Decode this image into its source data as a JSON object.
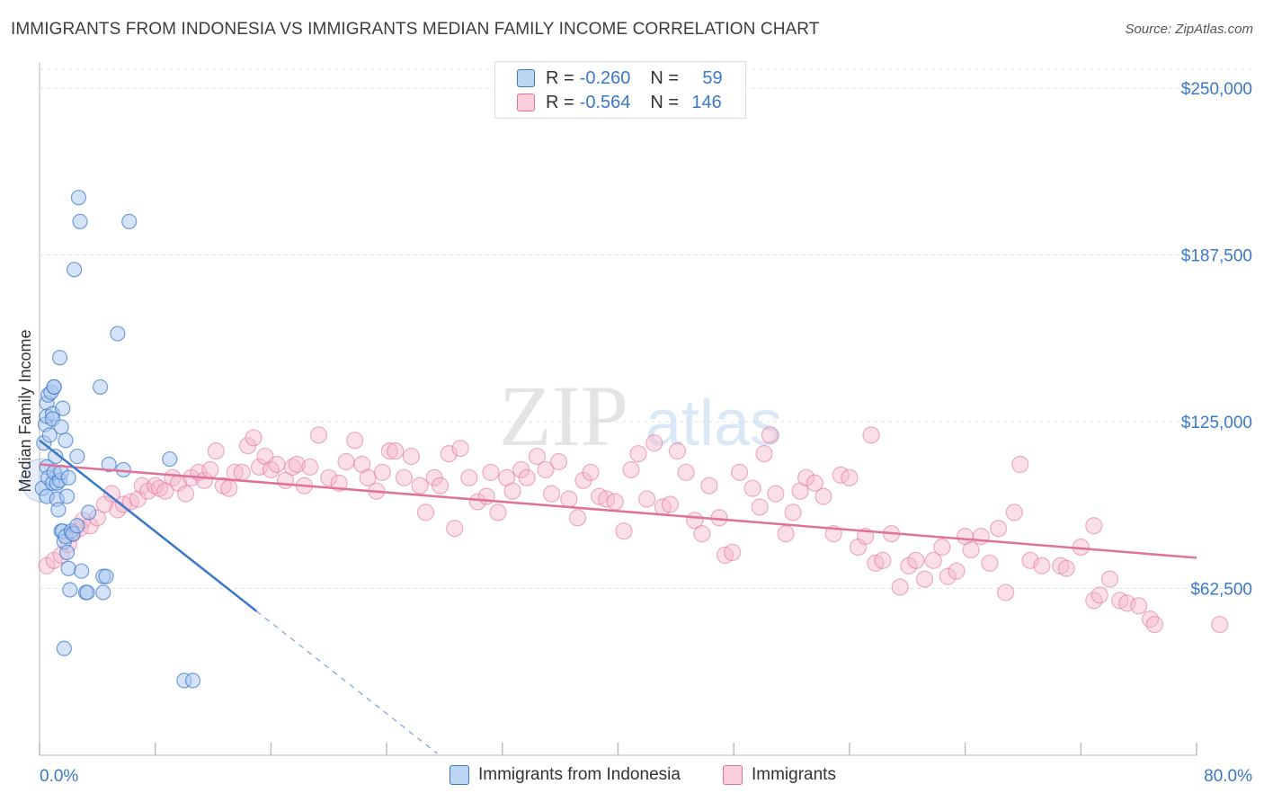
{
  "title": "IMMIGRANTS FROM INDONESIA VS IMMIGRANTS MEDIAN FAMILY INCOME CORRELATION CHART",
  "source": "Source: ZipAtlas.com",
  "watermark": {
    "zip": "ZIP",
    "atlas": "atlas"
  },
  "legend": {
    "series1": {
      "r_label": "R =",
      "r_value": "-0.260",
      "n_label": "N =",
      "n_value": "59"
    },
    "series2": {
      "r_label": "R =",
      "r_value": "-0.564",
      "n_label": "N =",
      "n_value": "146"
    }
  },
  "bottom_legend": {
    "series1": "Immigrants from Indonesia",
    "series2": "Immigrants"
  },
  "colors": {
    "blue": "#3a78c9",
    "blue_fill": "#a9c8f0",
    "pink": "#e0719a",
    "pink_fill": "#f4b8cb",
    "grid": "#e3e3e3"
  },
  "chart_data": {
    "type": "scatter",
    "xlabel": "",
    "ylabel": "Median Family Income",
    "xlim": [
      0,
      80
    ],
    "ylim": [
      0,
      260000
    ],
    "x_tick_labels": [
      "0.0%",
      "80.0%"
    ],
    "y_ticks": [
      62500,
      125000,
      187500,
      250000
    ],
    "y_tick_labels": [
      "$62,500",
      "$125,000",
      "$187,500",
      "$250,000"
    ],
    "grid": true,
    "legend_position": "top-center",
    "series": [
      {
        "name": "Immigrants from Indonesia",
        "color": "#3a78c9",
        "trend": {
          "x0": 0,
          "y0": 118000,
          "x1": 15,
          "y1": 54000,
          "dashed_to_x": 27.5
        },
        "points": [
          [
            0.2,
            100000
          ],
          [
            0.3,
            117000
          ],
          [
            0.4,
            124000
          ],
          [
            0.5,
            108000
          ],
          [
            0.5,
            97000
          ],
          [
            0.6,
            104000
          ],
          [
            0.5,
            132000
          ],
          [
            0.6,
            135000
          ],
          [
            0.5,
            127000
          ],
          [
            0.7,
            120000
          ],
          [
            0.8,
            136000
          ],
          [
            0.9,
            128000
          ],
          [
            0.9,
            126000
          ],
          [
            1.0,
            138000
          ],
          [
            1.0,
            138000
          ],
          [
            0.9,
            102000
          ],
          [
            1.0,
            106000
          ],
          [
            1.1,
            112000
          ],
          [
            1.2,
            102000
          ],
          [
            1.2,
            96000
          ],
          [
            1.3,
            92000
          ],
          [
            1.4,
            103000
          ],
          [
            1.5,
            106000
          ],
          [
            1.4,
            149000
          ],
          [
            1.5,
            123000
          ],
          [
            1.6,
            130000
          ],
          [
            1.5,
            84000
          ],
          [
            1.6,
            84000
          ],
          [
            1.7,
            80000
          ],
          [
            1.8,
            82000
          ],
          [
            1.8,
            118000
          ],
          [
            1.9,
            97000
          ],
          [
            1.9,
            76000
          ],
          [
            2.0,
            70000
          ],
          [
            2.0,
            104000
          ],
          [
            2.1,
            62000
          ],
          [
            2.2,
            84000
          ],
          [
            2.3,
            83000
          ],
          [
            2.6,
            112000
          ],
          [
            2.6,
            86000
          ],
          [
            2.7,
            209000
          ],
          [
            2.8,
            200000
          ],
          [
            2.9,
            69000
          ],
          [
            3.2,
            61000
          ],
          [
            3.4,
            91000
          ],
          [
            4.2,
            138000
          ],
          [
            4.4,
            67000
          ],
          [
            4.4,
            61000
          ],
          [
            4.6,
            67000
          ],
          [
            4.8,
            109000
          ],
          [
            5.4,
            158000
          ],
          [
            5.8,
            107000
          ],
          [
            6.2,
            200000
          ],
          [
            2.4,
            182000
          ],
          [
            1.7,
            40000
          ],
          [
            9.0,
            111000
          ],
          [
            10.0,
            28000
          ],
          [
            10.6,
            28000
          ],
          [
            3.3,
            61000
          ]
        ]
      },
      {
        "name": "Immigrants",
        "color": "#e0719a",
        "trend": {
          "x0": 0,
          "y0": 109000,
          "x1": 80,
          "y1": 74000
        },
        "points": [
          [
            0.5,
            71000
          ],
          [
            1.0,
            73000
          ],
          [
            1.5,
            75000
          ],
          [
            2.0,
            79000
          ],
          [
            2.3,
            83000
          ],
          [
            2.8,
            85000
          ],
          [
            3.0,
            88000
          ],
          [
            3.5,
            86000
          ],
          [
            4.0,
            89000
          ],
          [
            4.5,
            94000
          ],
          [
            5.0,
            98000
          ],
          [
            5.4,
            92000
          ],
          [
            5.8,
            94000
          ],
          [
            6.3,
            95000
          ],
          [
            6.8,
            96000
          ],
          [
            7.1,
            101000
          ],
          [
            7.5,
            99000
          ],
          [
            8.0,
            101000
          ],
          [
            8.3,
            100000
          ],
          [
            8.7,
            99000
          ],
          [
            9.2,
            104000
          ],
          [
            9.6,
            102000
          ],
          [
            10.1,
            98000
          ],
          [
            10.5,
            104000
          ],
          [
            11.0,
            106000
          ],
          [
            11.4,
            103000
          ],
          [
            11.8,
            107000
          ],
          [
            12.2,
            114000
          ],
          [
            12.7,
            101000
          ],
          [
            13.1,
            100000
          ],
          [
            13.5,
            106000
          ],
          [
            14.0,
            106000
          ],
          [
            14.4,
            116000
          ],
          [
            14.8,
            119000
          ],
          [
            15.2,
            108000
          ],
          [
            15.6,
            112000
          ],
          [
            16.0,
            107000
          ],
          [
            16.4,
            109000
          ],
          [
            17.0,
            103000
          ],
          [
            17.5,
            108000
          ],
          [
            17.8,
            109000
          ],
          [
            18.3,
            101000
          ],
          [
            18.7,
            108000
          ],
          [
            19.3,
            120000
          ],
          [
            20.0,
            104000
          ],
          [
            20.7,
            102000
          ],
          [
            21.2,
            110000
          ],
          [
            21.8,
            118000
          ],
          [
            22.3,
            109000
          ],
          [
            22.7,
            104000
          ],
          [
            23.3,
            99000
          ],
          [
            23.7,
            106000
          ],
          [
            24.2,
            114000
          ],
          [
            24.6,
            114000
          ],
          [
            25.2,
            104000
          ],
          [
            25.7,
            112000
          ],
          [
            26.3,
            101000
          ],
          [
            26.7,
            91000
          ],
          [
            27.3,
            104000
          ],
          [
            27.7,
            101000
          ],
          [
            28.3,
            113000
          ],
          [
            28.7,
            85000
          ],
          [
            29.1,
            115000
          ],
          [
            29.7,
            104000
          ],
          [
            30.3,
            95000
          ],
          [
            30.9,
            97000
          ],
          [
            31.2,
            106000
          ],
          [
            31.7,
            91000
          ],
          [
            32.3,
            104000
          ],
          [
            32.7,
            99000
          ],
          [
            33.3,
            107000
          ],
          [
            33.7,
            104000
          ],
          [
            34.4,
            112000
          ],
          [
            35.0,
            107000
          ],
          [
            35.4,
            98000
          ],
          [
            35.9,
            110000
          ],
          [
            36.6,
            96000
          ],
          [
            37.2,
            89000
          ],
          [
            37.6,
            103000
          ],
          [
            38.1,
            106000
          ],
          [
            38.7,
            97000
          ],
          [
            39.2,
            96000
          ],
          [
            39.8,
            95000
          ],
          [
            40.4,
            84000
          ],
          [
            40.9,
            107000
          ],
          [
            41.4,
            113000
          ],
          [
            42.0,
            96000
          ],
          [
            42.5,
            117000
          ],
          [
            43.1,
            93000
          ],
          [
            43.6,
            94000
          ],
          [
            44.1,
            114000
          ],
          [
            44.7,
            106000
          ],
          [
            45.3,
            88000
          ],
          [
            45.8,
            83000
          ],
          [
            46.3,
            101000
          ],
          [
            47.0,
            89000
          ],
          [
            47.4,
            75000
          ],
          [
            47.9,
            76000
          ],
          [
            48.4,
            106000
          ],
          [
            49.3,
            100000
          ],
          [
            49.8,
            93000
          ],
          [
            50.1,
            113000
          ],
          [
            50.5,
            120000
          ],
          [
            50.9,
            98000
          ],
          [
            51.6,
            83000
          ],
          [
            52.1,
            91000
          ],
          [
            52.6,
            99000
          ],
          [
            53.0,
            104000
          ],
          [
            53.6,
            102000
          ],
          [
            54.2,
            97000
          ],
          [
            54.9,
            83000
          ],
          [
            55.4,
            105000
          ],
          [
            56.0,
            104000
          ],
          [
            56.6,
            78000
          ],
          [
            57.1,
            82000
          ],
          [
            57.8,
            72000
          ],
          [
            58.3,
            73000
          ],
          [
            58.9,
            83000
          ],
          [
            59.5,
            63000
          ],
          [
            60.1,
            71000
          ],
          [
            60.6,
            73000
          ],
          [
            61.2,
            66000
          ],
          [
            61.8,
            73000
          ],
          [
            62.4,
            78000
          ],
          [
            62.8,
            67000
          ],
          [
            63.4,
            69000
          ],
          [
            64.0,
            82000
          ],
          [
            64.4,
            77000
          ],
          [
            65.1,
            82000
          ],
          [
            65.7,
            72000
          ],
          [
            66.3,
            85000
          ],
          [
            66.8,
            61000
          ],
          [
            67.4,
            91000
          ],
          [
            67.8,
            109000
          ],
          [
            68.5,
            73000
          ],
          [
            69.3,
            71000
          ],
          [
            70.6,
            71000
          ],
          [
            71.0,
            70000
          ],
          [
            72.0,
            78000
          ],
          [
            72.9,
            58000
          ],
          [
            73.3,
            60000
          ],
          [
            74.0,
            66000
          ],
          [
            74.7,
            58000
          ],
          [
            75.2,
            57000
          ],
          [
            76.0,
            56000
          ],
          [
            76.8,
            51000
          ],
          [
            77.1,
            49000
          ],
          [
            81.6,
            49000
          ],
          [
            72.9,
            86000
          ],
          [
            57.5,
            120000
          ]
        ]
      }
    ]
  }
}
